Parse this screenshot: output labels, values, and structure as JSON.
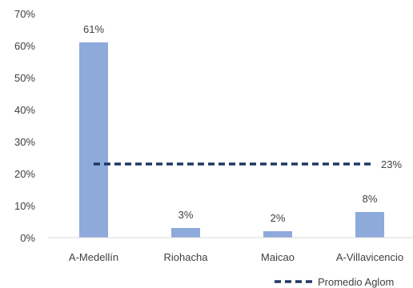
{
  "chart_data": {
    "type": "bar",
    "categories": [
      "A-Medellín",
      "Riohacha",
      "Maicao",
      "A-Villavicencio"
    ],
    "series": [
      {
        "values": [
          61,
          3,
          2,
          8
        ],
        "data_labels": [
          "61%",
          "3%",
          "2%",
          "8%"
        ],
        "color": "#8eaadb"
      }
    ],
    "reference_line": {
      "name": "Promedio Aglom",
      "value": 23,
      "label": "23%",
      "style": "dashed",
      "color": "#1f3864"
    },
    "ylim": [
      0,
      70
    ],
    "yticks": [
      0,
      10,
      20,
      30,
      40,
      50,
      60,
      70
    ],
    "ytick_labels": [
      "0%",
      "10%",
      "20%",
      "30%",
      "40%",
      "50%",
      "60%",
      "70%"
    ],
    "grid": false,
    "legend_position": "bottom-right",
    "title": "",
    "xlabel": "",
    "ylabel": ""
  }
}
